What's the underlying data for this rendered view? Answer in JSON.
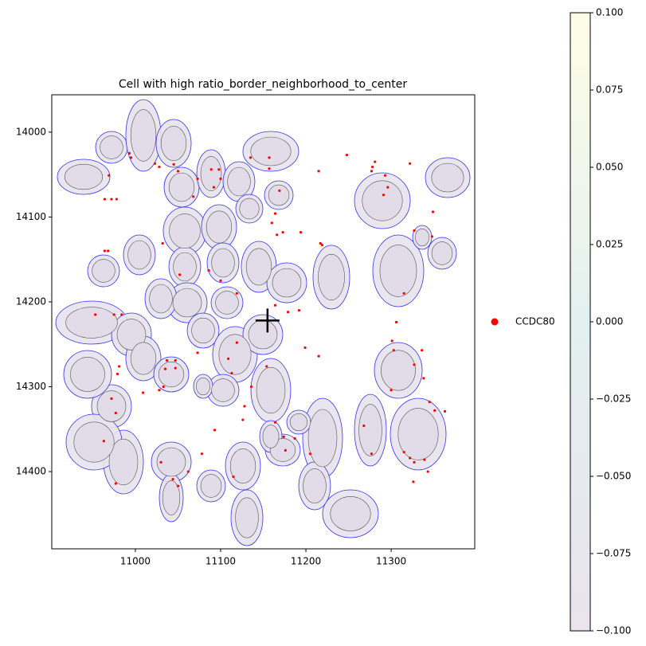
{
  "chart_data": {
    "type": "scatter",
    "title": "Cell with high ratio_border_neighborhood_to_center",
    "xlim": [
      10902,
      11398
    ],
    "ylim": [
      14491,
      13956
    ],
    "xticks": [
      11000,
      11100,
      11200,
      11300
    ],
    "yticks": [
      14000,
      14100,
      14200,
      14300,
      14400
    ],
    "crosshair": [
      11155,
      14222
    ],
    "series": [
      {
        "name": "CCDC80",
        "color": "#ff0000",
        "x": [
          10969,
          10993,
          10995,
          10964,
          10972,
          10978,
          11023,
          11028,
          11045,
          11050,
          11089,
          11098,
          11100,
          11073,
          11068,
          11092,
          11157,
          11157,
          11135,
          11169,
          11164,
          11160,
          11166,
          11173,
          11194,
          11217,
          11219,
          11248,
          11215,
          11278,
          11281,
          11277,
          11293,
          11296,
          11291,
          11322,
          11349,
          11348,
          11327,
          10964,
          10968,
          10953,
          10975,
          10984,
          11032,
          11052,
          11086,
          11100,
          11119,
          11164,
          11179,
          11192,
          11315,
          11306,
          11301,
          11303,
          11336,
          11327,
          11300,
          11338,
          11345,
          11351,
          11363,
          11199,
          11215,
          11119,
          11109,
          11113,
          11073,
          11037,
          11035,
          11047,
          11047,
          10981,
          10979,
          10972,
          10977,
          11009,
          11033,
          11028,
          11154,
          11136,
          11128,
          11126,
          11164,
          11174,
          11176,
          11205,
          11268,
          11277,
          11315,
          11322,
          11327,
          11339,
          11343,
          11326,
          10963,
          10977,
          11030,
          11044,
          11050,
          11062,
          11078,
          11115,
          11093,
          11187
        ],
        "y": [
          14051,
          14025,
          14030,
          14079,
          14079,
          14079,
          14037,
          14041,
          14038,
          14046,
          14044,
          14044,
          14055,
          14055,
          14076,
          14065,
          14030,
          14043,
          14030,
          14069,
          14096,
          14107,
          14121,
          14118,
          14118,
          14131,
          14133,
          14027,
          14046,
          14041,
          14035,
          14046,
          14051,
          14065,
          14074,
          14037,
          14094,
          14123,
          14116,
          14140,
          14140,
          14215,
          14215,
          14215,
          14131,
          14168,
          14163,
          14175,
          14190,
          14204,
          14212,
          14210,
          14190,
          14224,
          14246,
          14257,
          14257,
          14274,
          14304,
          14290,
          14318,
          14328,
          14329,
          14254,
          14264,
          14248,
          14267,
          14284,
          14260,
          14269,
          14279,
          14278,
          14269,
          14276,
          14285,
          14314,
          14331,
          14307,
          14300,
          14304,
          14276,
          14300,
          14323,
          14339,
          14342,
          14359,
          14375,
          14379,
          14346,
          14379,
          14377,
          14384,
          14389,
          14386,
          14400,
          14412,
          14364,
          14414,
          14389,
          14409,
          14417,
          14400,
          14379,
          14406,
          14351,
          14361
        ]
      }
    ],
    "colorbar": {
      "lim": [
        -0.1,
        0.1
      ],
      "ticks": [
        {
          "value": -0.1,
          "label": "−0.100"
        },
        {
          "value": -0.075,
          "label": "−0.075"
        },
        {
          "value": -0.05,
          "label": "−0.050"
        },
        {
          "value": -0.025,
          "label": "−0.025"
        },
        {
          "value": 0,
          "label": "0.000"
        },
        {
          "value": 0.025,
          "label": "0.025"
        },
        {
          "value": 0.05,
          "label": "0.050"
        },
        {
          "value": 0.075,
          "label": "0.075"
        },
        {
          "value": 0.1,
          "label": "0.100"
        }
      ]
    }
  }
}
